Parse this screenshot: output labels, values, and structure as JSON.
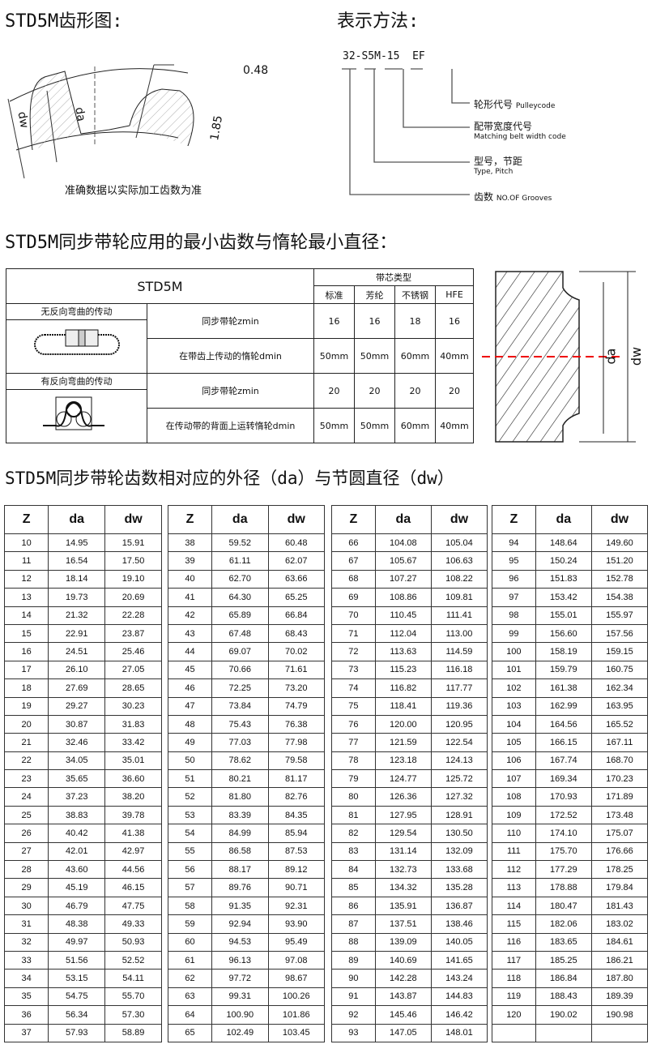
{
  "profile": {
    "title": "STD5M齿形图:",
    "dim_top": "0.48",
    "dim_height": "1.85",
    "label_dw": "dw",
    "label_da": "da",
    "note": "准确数据以实际加工齿数为准"
  },
  "notation": {
    "title": "表示方法:",
    "code": [
      "32",
      "S5M",
      "15",
      "EF"
    ],
    "items": [
      {
        "zh": "轮形代号",
        "en": "Pulleycode"
      },
      {
        "zh": "配带宽度代号",
        "en": "Matching belt width code"
      },
      {
        "zh": "型号，节距",
        "en": "Type, Pitch"
      },
      {
        "zh": "齿数",
        "en": "NO.OF Grooves"
      }
    ]
  },
  "min_section": {
    "title": "STD5M同步带轮应用的最小齿数与惰轮最小直径：",
    "model": "STD5M",
    "core_type": "带芯类型",
    "cores": [
      "标准",
      "芳纶",
      "不锈钢",
      "HFE"
    ],
    "groups": [
      {
        "name": "无反向弯曲的传动",
        "rows": [
          {
            "label": "同步带轮zmin",
            "values": [
              "16",
              "16",
              "18",
              "16"
            ]
          },
          {
            "label": "在带齿上传动的惰轮dmin",
            "values": [
              "50mm",
              "50mm",
              "60mm",
              "40mm"
            ]
          }
        ]
      },
      {
        "name": "有反向弯曲的传动",
        "rows": [
          {
            "label": "同步带轮zmin",
            "values": [
              "20",
              "20",
              "20",
              "20"
            ]
          },
          {
            "label": "在传动带的背面上运转惰轮dmin",
            "values": [
              "50mm",
              "50mm",
              "60mm",
              "40mm"
            ]
          }
        ]
      }
    ],
    "part_labels": {
      "da": "da",
      "dw": "dw"
    }
  },
  "dia_section": {
    "title": "STD5M同步带轮齿数相对应的外径（da）与节圆直径（dw）",
    "headers": [
      "Z",
      "da",
      "dw"
    ],
    "tables": [
      [
        [
          "10",
          "14.95",
          "15.91"
        ],
        [
          "11",
          "16.54",
          "17.50"
        ],
        [
          "12",
          "18.14",
          "19.10"
        ],
        [
          "13",
          "19.73",
          "20.69"
        ],
        [
          "14",
          "21.32",
          "22.28"
        ],
        [
          "15",
          "22.91",
          "23.87"
        ],
        [
          "16",
          "24.51",
          "25.46"
        ],
        [
          "17",
          "26.10",
          "27.05"
        ],
        [
          "18",
          "27.69",
          "28.65"
        ],
        [
          "19",
          "29.27",
          "30.23"
        ],
        [
          "20",
          "30.87",
          "31.83"
        ],
        [
          "21",
          "32.46",
          "33.42"
        ],
        [
          "22",
          "34.05",
          "35.01"
        ],
        [
          "23",
          "35.65",
          "36.60"
        ],
        [
          "24",
          "37.23",
          "38.20"
        ],
        [
          "25",
          "38.83",
          "39.78"
        ],
        [
          "26",
          "40.42",
          "41.38"
        ],
        [
          "27",
          "42.01",
          "42.97"
        ],
        [
          "28",
          "43.60",
          "44.56"
        ],
        [
          "29",
          "45.19",
          "46.15"
        ],
        [
          "30",
          "46.79",
          "47.75"
        ],
        [
          "31",
          "48.38",
          "49.33"
        ],
        [
          "32",
          "49.97",
          "50.93"
        ],
        [
          "33",
          "51.56",
          "52.52"
        ],
        [
          "34",
          "53.15",
          "54.11"
        ],
        [
          "35",
          "54.75",
          "55.70"
        ],
        [
          "36",
          "56.34",
          "57.30"
        ],
        [
          "37",
          "57.93",
          "58.89"
        ]
      ],
      [
        [
          "38",
          "59.52",
          "60.48"
        ],
        [
          "39",
          "61.11",
          "62.07"
        ],
        [
          "40",
          "62.70",
          "63.66"
        ],
        [
          "41",
          "64.30",
          "65.25"
        ],
        [
          "42",
          "65.89",
          "66.84"
        ],
        [
          "43",
          "67.48",
          "68.43"
        ],
        [
          "44",
          "69.07",
          "70.02"
        ],
        [
          "45",
          "70.66",
          "71.61"
        ],
        [
          "46",
          "72.25",
          "73.20"
        ],
        [
          "47",
          "73.84",
          "74.79"
        ],
        [
          "48",
          "75.43",
          "76.38"
        ],
        [
          "49",
          "77.03",
          "77.98"
        ],
        [
          "50",
          "78.62",
          "79.58"
        ],
        [
          "51",
          "80.21",
          "81.17"
        ],
        [
          "52",
          "81.80",
          "82.76"
        ],
        [
          "53",
          "83.39",
          "84.35"
        ],
        [
          "54",
          "84.99",
          "85.94"
        ],
        [
          "55",
          "86.58",
          "87.53"
        ],
        [
          "56",
          "88.17",
          "89.12"
        ],
        [
          "57",
          "89.76",
          "90.71"
        ],
        [
          "58",
          "91.35",
          "92.31"
        ],
        [
          "59",
          "92.94",
          "93.90"
        ],
        [
          "60",
          "94.53",
          "95.49"
        ],
        [
          "61",
          "96.13",
          "97.08"
        ],
        [
          "62",
          "97.72",
          "98.67"
        ],
        [
          "63",
          "99.31",
          "100.26"
        ],
        [
          "64",
          "100.90",
          "101.86"
        ],
        [
          "65",
          "102.49",
          "103.45"
        ]
      ],
      [
        [
          "66",
          "104.08",
          "105.04"
        ],
        [
          "67",
          "105.67",
          "106.63"
        ],
        [
          "68",
          "107.27",
          "108.22"
        ],
        [
          "69",
          "108.86",
          "109.81"
        ],
        [
          "70",
          "110.45",
          "111.41"
        ],
        [
          "71",
          "112.04",
          "113.00"
        ],
        [
          "72",
          "113.63",
          "114.59"
        ],
        [
          "73",
          "115.23",
          "116.18"
        ],
        [
          "74",
          "116.82",
          "117.77"
        ],
        [
          "75",
          "118.41",
          "119.36"
        ],
        [
          "76",
          "120.00",
          "120.95"
        ],
        [
          "77",
          "121.59",
          "122.54"
        ],
        [
          "78",
          "123.18",
          "124.13"
        ],
        [
          "79",
          "124.77",
          "125.72"
        ],
        [
          "80",
          "126.36",
          "127.32"
        ],
        [
          "81",
          "127.95",
          "128.91"
        ],
        [
          "82",
          "129.54",
          "130.50"
        ],
        [
          "83",
          "131.14",
          "132.09"
        ],
        [
          "84",
          "132.73",
          "133.68"
        ],
        [
          "85",
          "134.32",
          "135.28"
        ],
        [
          "86",
          "135.91",
          "136.87"
        ],
        [
          "87",
          "137.51",
          "138.46"
        ],
        [
          "88",
          "139.09",
          "140.05"
        ],
        [
          "89",
          "140.69",
          "141.65"
        ],
        [
          "90",
          "142.28",
          "143.24"
        ],
        [
          "91",
          "143.87",
          "144.83"
        ],
        [
          "92",
          "145.46",
          "146.42"
        ],
        [
          "93",
          "147.05",
          "148.01"
        ]
      ],
      [
        [
          "94",
          "148.64",
          "149.60"
        ],
        [
          "95",
          "150.24",
          "151.20"
        ],
        [
          "96",
          "151.83",
          "152.78"
        ],
        [
          "97",
          "153.42",
          "154.38"
        ],
        [
          "98",
          "155.01",
          "155.97"
        ],
        [
          "99",
          "156.60",
          "157.56"
        ],
        [
          "100",
          "158.19",
          "159.15"
        ],
        [
          "101",
          "159.79",
          "160.75"
        ],
        [
          "102",
          "161.38",
          "162.34"
        ],
        [
          "103",
          "162.99",
          "163.95"
        ],
        [
          "104",
          "164.56",
          "165.52"
        ],
        [
          "105",
          "166.15",
          "167.11"
        ],
        [
          "106",
          "167.74",
          "168.70"
        ],
        [
          "107",
          "169.34",
          "170.23"
        ],
        [
          "108",
          "170.93",
          "171.89"
        ],
        [
          "109",
          "172.52",
          "173.48"
        ],
        [
          "110",
          "174.10",
          "175.07"
        ],
        [
          "111",
          "175.70",
          "176.66"
        ],
        [
          "112",
          "177.29",
          "178.25"
        ],
        [
          "113",
          "178.88",
          "179.84"
        ],
        [
          "114",
          "180.47",
          "181.43"
        ],
        [
          "115",
          "182.06",
          "183.02"
        ],
        [
          "116",
          "183.65",
          "184.61"
        ],
        [
          "117",
          "185.25",
          "186.21"
        ],
        [
          "118",
          "186.84",
          "187.80"
        ],
        [
          "119",
          "188.43",
          "189.39"
        ],
        [
          "120",
          "190.02",
          "190.98"
        ],
        [
          "",
          "",
          " "
        ]
      ]
    ]
  }
}
